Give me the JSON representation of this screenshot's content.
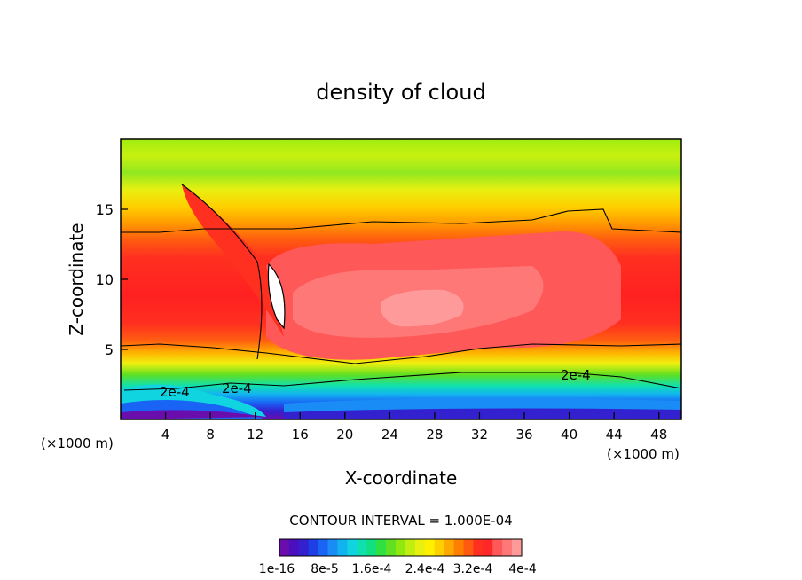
{
  "chart_data": {
    "type": "heatmap",
    "title": "density of cloud",
    "xlabel": "X-coordinate",
    "ylabel": "Z-coordinate",
    "x_unit_left": "(×1000 m)",
    "x_unit_right": "(×1000 m)",
    "xlim": [
      0,
      50
    ],
    "ylim": [
      0,
      20
    ],
    "x_ticks": [
      4,
      8,
      12,
      16,
      20,
      24,
      28,
      32,
      36,
      40,
      44,
      48
    ],
    "y_ticks": [
      5,
      10,
      15
    ],
    "contour_interval_text": "CONTOUR INTERVAL = 1.000E-04",
    "contour_labels": [
      "2e-4",
      "2e-4",
      "2e-4",
      "2e-4"
    ],
    "colorbar_labels": [
      "1e-16",
      "8e-5",
      "1.6e-4",
      "2.4e-4",
      "3.2e-4",
      "4e-4"
    ],
    "colorbar_colors": [
      "#6a0dad",
      "#4b0fbf",
      "#3320cf",
      "#1f3fe6",
      "#1a64f5",
      "#1a8cf5",
      "#12b4f0",
      "#10d4e0",
      "#10e0b0",
      "#10e080",
      "#30e040",
      "#60e020",
      "#90e810",
      "#c0ee10",
      "#e8f010",
      "#fff000",
      "#ffd000",
      "#ffa800",
      "#ff8000",
      "#ff5a10",
      "#ff3020",
      "#ff2828",
      "#ff5858",
      "#ff7878",
      "#ff9a9a"
    ]
  }
}
